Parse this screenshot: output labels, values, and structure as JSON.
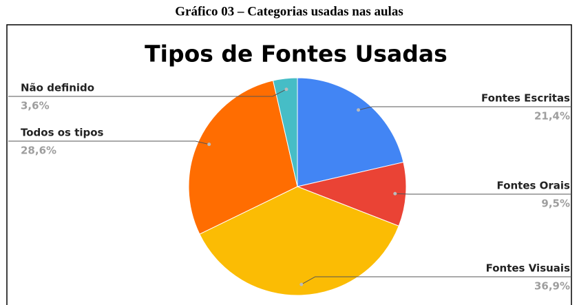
{
  "caption": "Gráfico 03 – Categorias usadas nas aulas",
  "chart_data": {
    "type": "pie",
    "title": "Tipos de Fontes Usadas",
    "categories": [
      "Fontes Escritas",
      "Fontes Orais",
      "Fontes Visuais",
      "Todos os tipos",
      "Não definido"
    ],
    "values": [
      21.4,
      9.5,
      36.9,
      28.6,
      3.6
    ],
    "value_labels": [
      "21,4%",
      "9,5%",
      "36,9%",
      "28,6%",
      "3,6%"
    ],
    "colors": [
      "#4285f4",
      "#ea4335",
      "#fbbc04",
      "#ff6d01",
      "#46bdc6"
    ]
  }
}
